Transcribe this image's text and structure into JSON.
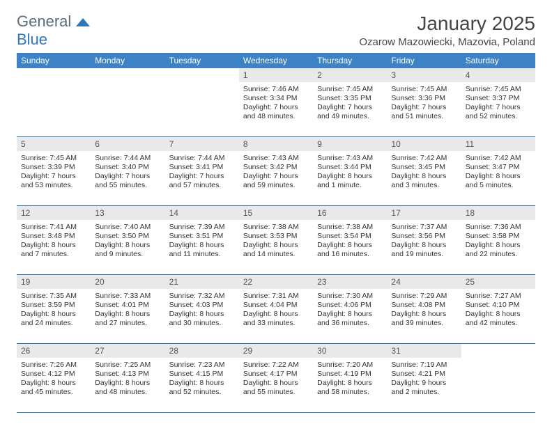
{
  "logo": {
    "text1": "General",
    "text2": "Blue",
    "text1_color": "#5a6b7a",
    "text2_color": "#2f76b8",
    "mark_color": "#2f76b8"
  },
  "title": "January 2025",
  "location": "Ozarow Mazowiecki, Mazovia, Poland",
  "colors": {
    "header_bg": "#3c82c4",
    "header_text": "#ffffff",
    "daynum_bg": "#e9e9e9",
    "rule": "#2f76b8",
    "body_text": "#333333",
    "background": "#ffffff"
  },
  "day_names": [
    "Sunday",
    "Monday",
    "Tuesday",
    "Wednesday",
    "Thursday",
    "Friday",
    "Saturday"
  ],
  "weeks": [
    [
      {
        "n": "",
        "sr": "",
        "ss": "",
        "dl": ""
      },
      {
        "n": "",
        "sr": "",
        "ss": "",
        "dl": ""
      },
      {
        "n": "",
        "sr": "",
        "ss": "",
        "dl": ""
      },
      {
        "n": "1",
        "sr": "Sunrise: 7:46 AM",
        "ss": "Sunset: 3:34 PM",
        "dl": "Daylight: 7 hours and 48 minutes."
      },
      {
        "n": "2",
        "sr": "Sunrise: 7:45 AM",
        "ss": "Sunset: 3:35 PM",
        "dl": "Daylight: 7 hours and 49 minutes."
      },
      {
        "n": "3",
        "sr": "Sunrise: 7:45 AM",
        "ss": "Sunset: 3:36 PM",
        "dl": "Daylight: 7 hours and 51 minutes."
      },
      {
        "n": "4",
        "sr": "Sunrise: 7:45 AM",
        "ss": "Sunset: 3:37 PM",
        "dl": "Daylight: 7 hours and 52 minutes."
      }
    ],
    [
      {
        "n": "5",
        "sr": "Sunrise: 7:45 AM",
        "ss": "Sunset: 3:39 PM",
        "dl": "Daylight: 7 hours and 53 minutes."
      },
      {
        "n": "6",
        "sr": "Sunrise: 7:44 AM",
        "ss": "Sunset: 3:40 PM",
        "dl": "Daylight: 7 hours and 55 minutes."
      },
      {
        "n": "7",
        "sr": "Sunrise: 7:44 AM",
        "ss": "Sunset: 3:41 PM",
        "dl": "Daylight: 7 hours and 57 minutes."
      },
      {
        "n": "8",
        "sr": "Sunrise: 7:43 AM",
        "ss": "Sunset: 3:42 PM",
        "dl": "Daylight: 7 hours and 59 minutes."
      },
      {
        "n": "9",
        "sr": "Sunrise: 7:43 AM",
        "ss": "Sunset: 3:44 PM",
        "dl": "Daylight: 8 hours and 1 minute."
      },
      {
        "n": "10",
        "sr": "Sunrise: 7:42 AM",
        "ss": "Sunset: 3:45 PM",
        "dl": "Daylight: 8 hours and 3 minutes."
      },
      {
        "n": "11",
        "sr": "Sunrise: 7:42 AM",
        "ss": "Sunset: 3:47 PM",
        "dl": "Daylight: 8 hours and 5 minutes."
      }
    ],
    [
      {
        "n": "12",
        "sr": "Sunrise: 7:41 AM",
        "ss": "Sunset: 3:48 PM",
        "dl": "Daylight: 8 hours and 7 minutes."
      },
      {
        "n": "13",
        "sr": "Sunrise: 7:40 AM",
        "ss": "Sunset: 3:50 PM",
        "dl": "Daylight: 8 hours and 9 minutes."
      },
      {
        "n": "14",
        "sr": "Sunrise: 7:39 AM",
        "ss": "Sunset: 3:51 PM",
        "dl": "Daylight: 8 hours and 11 minutes."
      },
      {
        "n": "15",
        "sr": "Sunrise: 7:38 AM",
        "ss": "Sunset: 3:53 PM",
        "dl": "Daylight: 8 hours and 14 minutes."
      },
      {
        "n": "16",
        "sr": "Sunrise: 7:38 AM",
        "ss": "Sunset: 3:54 PM",
        "dl": "Daylight: 8 hours and 16 minutes."
      },
      {
        "n": "17",
        "sr": "Sunrise: 7:37 AM",
        "ss": "Sunset: 3:56 PM",
        "dl": "Daylight: 8 hours and 19 minutes."
      },
      {
        "n": "18",
        "sr": "Sunrise: 7:36 AM",
        "ss": "Sunset: 3:58 PM",
        "dl": "Daylight: 8 hours and 22 minutes."
      }
    ],
    [
      {
        "n": "19",
        "sr": "Sunrise: 7:35 AM",
        "ss": "Sunset: 3:59 PM",
        "dl": "Daylight: 8 hours and 24 minutes."
      },
      {
        "n": "20",
        "sr": "Sunrise: 7:33 AM",
        "ss": "Sunset: 4:01 PM",
        "dl": "Daylight: 8 hours and 27 minutes."
      },
      {
        "n": "21",
        "sr": "Sunrise: 7:32 AM",
        "ss": "Sunset: 4:03 PM",
        "dl": "Daylight: 8 hours and 30 minutes."
      },
      {
        "n": "22",
        "sr": "Sunrise: 7:31 AM",
        "ss": "Sunset: 4:04 PM",
        "dl": "Daylight: 8 hours and 33 minutes."
      },
      {
        "n": "23",
        "sr": "Sunrise: 7:30 AM",
        "ss": "Sunset: 4:06 PM",
        "dl": "Daylight: 8 hours and 36 minutes."
      },
      {
        "n": "24",
        "sr": "Sunrise: 7:29 AM",
        "ss": "Sunset: 4:08 PM",
        "dl": "Daylight: 8 hours and 39 minutes."
      },
      {
        "n": "25",
        "sr": "Sunrise: 7:27 AM",
        "ss": "Sunset: 4:10 PM",
        "dl": "Daylight: 8 hours and 42 minutes."
      }
    ],
    [
      {
        "n": "26",
        "sr": "Sunrise: 7:26 AM",
        "ss": "Sunset: 4:12 PM",
        "dl": "Daylight: 8 hours and 45 minutes."
      },
      {
        "n": "27",
        "sr": "Sunrise: 7:25 AM",
        "ss": "Sunset: 4:13 PM",
        "dl": "Daylight: 8 hours and 48 minutes."
      },
      {
        "n": "28",
        "sr": "Sunrise: 7:23 AM",
        "ss": "Sunset: 4:15 PM",
        "dl": "Daylight: 8 hours and 52 minutes."
      },
      {
        "n": "29",
        "sr": "Sunrise: 7:22 AM",
        "ss": "Sunset: 4:17 PM",
        "dl": "Daylight: 8 hours and 55 minutes."
      },
      {
        "n": "30",
        "sr": "Sunrise: 7:20 AM",
        "ss": "Sunset: 4:19 PM",
        "dl": "Daylight: 8 hours and 58 minutes."
      },
      {
        "n": "31",
        "sr": "Sunrise: 7:19 AM",
        "ss": "Sunset: 4:21 PM",
        "dl": "Daylight: 9 hours and 2 minutes."
      },
      {
        "n": "",
        "sr": "",
        "ss": "",
        "dl": ""
      }
    ]
  ]
}
